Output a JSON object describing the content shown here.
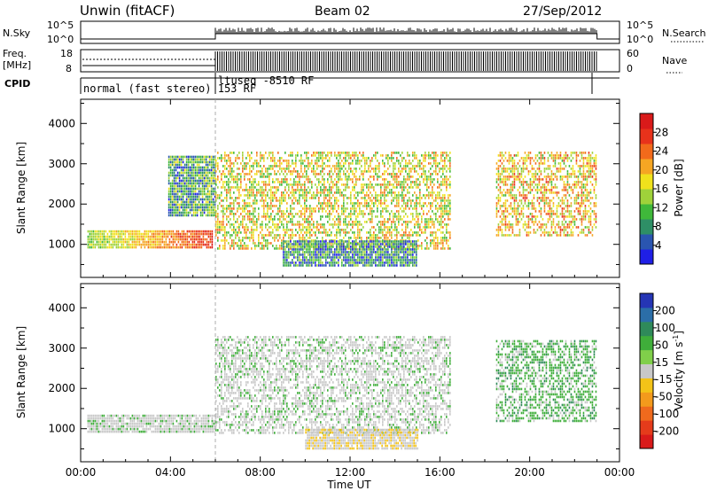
{
  "header": {
    "station": "Unwin (fitACF)",
    "beam": "Beam 02",
    "date": "27/Sep/2012"
  },
  "strip_labels": {
    "nsky": "N.Sky",
    "freq": "Freq.",
    "freq_unit": "[MHz]",
    "cpid": "CPID",
    "nsearch": "N.Search",
    "nave": "Nave"
  },
  "strip_ticks": {
    "nsky_top": "10^5",
    "nsky_bottom": "10^0",
    "nsearch_top": "10^5",
    "nsearch_bottom": "10^0",
    "freq_top": "18",
    "freq_bottom": "8",
    "nave_top": "60",
    "nave_bottom": "0"
  },
  "cpid_labels": {
    "first": "normal (fast stereo) 153 RF",
    "second": "ltuseq -8510 RF"
  },
  "axes": {
    "ylabel": "Slant Range [km]",
    "xlabel": "Time UT",
    "x_ticks": [
      "00:00",
      "04:00",
      "08:00",
      "12:00",
      "16:00",
      "20:00",
      "00:00"
    ],
    "y_ticks": [
      "1000",
      "2000",
      "3000",
      "4000"
    ]
  },
  "colorbars": {
    "power": {
      "label": "Power [dB]",
      "ticks": [
        "4",
        "8",
        "12",
        "16",
        "20",
        "24",
        "28"
      ],
      "colors": [
        "#1f1fe6",
        "#2a55b0",
        "#2e8f66",
        "#3fb83a",
        "#9fd23a",
        "#f0e21c",
        "#f5a623",
        "#f26a1b",
        "#e8321b",
        "#d91a1a"
      ]
    },
    "velocity": {
      "label": "Velocity [m s",
      "label_exp": "-1",
      "label_end": "]",
      "ticks": [
        "200",
        "100",
        "50",
        "15",
        "-15",
        "-50",
        "-100",
        "-200"
      ],
      "colors": [
        "#2535b5",
        "#2b6ea8",
        "#2f8a5a",
        "#3fae3a",
        "#80cf4a",
        "#c8c8c8",
        "#f3c318",
        "#f39a1c",
        "#ef6a1d",
        "#e53b1b",
        "#d91a1a"
      ]
    }
  },
  "chart_data": [
    {
      "type": "heatmap",
      "name": "Power",
      "xlabel": "Time UT",
      "ylabel": "Slant Range [km]",
      "xlim_hours": [
        0,
        24
      ],
      "ylim_km": [
        180,
        4600
      ],
      "colorbar": {
        "label": "Power [dB]",
        "range": [
          0,
          30
        ]
      },
      "regions": [
        {
          "t_start": 0.3,
          "t_end": 5.9,
          "range_low": 900,
          "range_high": 1350,
          "value": 18,
          "trend": "increasing power toward 06:00 (green to orange/red)"
        },
        {
          "t_start": 3.9,
          "t_end": 6.0,
          "range_low": 1700,
          "range_high": 3200,
          "value": 9,
          "trend": "scattered blue/green"
        },
        {
          "t_start": 6.0,
          "t_end": 16.5,
          "range_low": 900,
          "range_high": 3300,
          "value": 16,
          "trend": "dense mixed green/yellow/orange echoes"
        },
        {
          "t_start": 9.0,
          "t_end": 15.0,
          "range_low": 500,
          "range_high": 1100,
          "value": 8,
          "trend": "oblique low-range band"
        },
        {
          "t_start": 18.5,
          "t_end": 23.0,
          "range_low": 1200,
          "range_high": 3300,
          "value": 18,
          "trend": "mixed orange/green echoes"
        }
      ]
    },
    {
      "type": "heatmap",
      "name": "Velocity",
      "xlabel": "Time UT",
      "ylabel": "Slant Range [km]",
      "xlim_hours": [
        0,
        24
      ],
      "ylim_km": [
        180,
        4600
      ],
      "colorbar": {
        "label": "Velocity [m s-1]",
        "range": [
          -200,
          200
        ]
      },
      "regions": [
        {
          "t_start": 0.3,
          "t_end": 6.0,
          "range_low": 900,
          "range_high": 1350,
          "value": 0,
          "trend": "ground scatter (grey)"
        },
        {
          "t_start": 6.0,
          "t_end": 16.5,
          "range_low": 900,
          "range_high": 3300,
          "value": 0,
          "trend": "mostly grey with orange and green patches"
        },
        {
          "t_start": 10.0,
          "t_end": 15.0,
          "range_low": 500,
          "range_high": 1000,
          "value": -40,
          "trend": "orange band"
        },
        {
          "t_start": 18.5,
          "t_end": 23.0,
          "range_low": 1200,
          "range_high": 3200,
          "value": 30,
          "trend": "green and grey"
        }
      ]
    }
  ]
}
